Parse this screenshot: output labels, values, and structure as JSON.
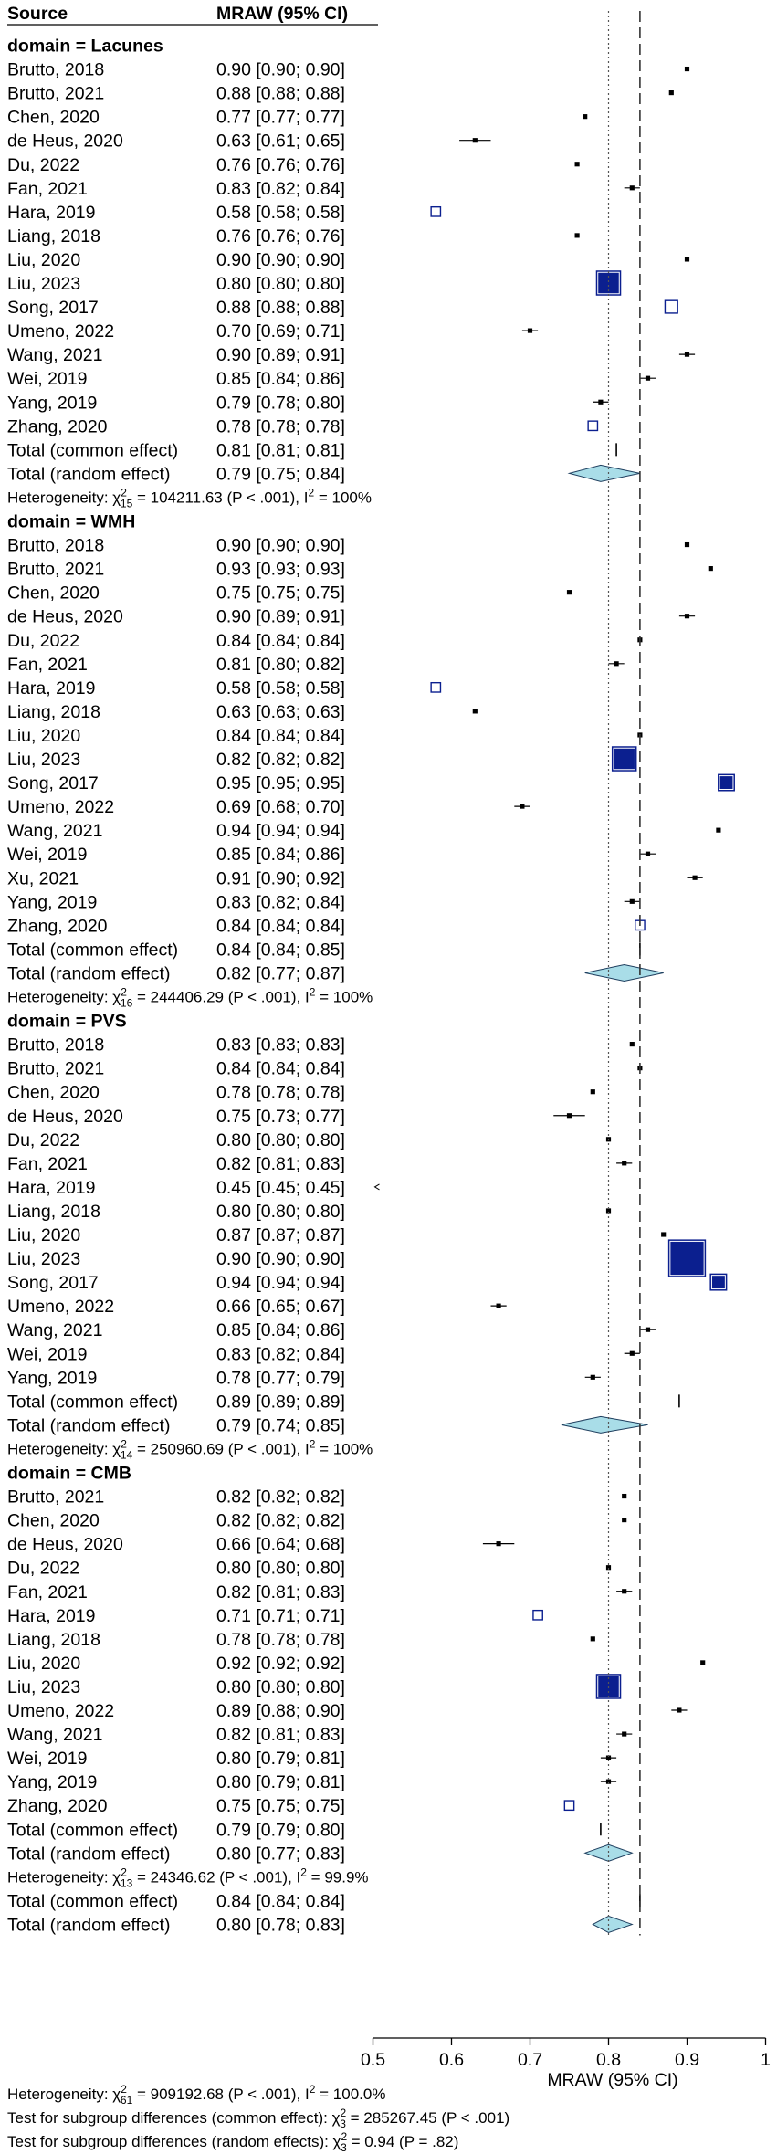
{
  "chart_data": {
    "type": "forest",
    "columns": {
      "source": "Source",
      "estimate": "MRAW (95% CI)"
    },
    "xlabel": "MRAW (95% CI)",
    "xlim": [
      0.5,
      1.0
    ],
    "ticks": [
      "0.5",
      "0.6",
      "0.7",
      "0.8",
      "0.9",
      "1"
    ],
    "overall_common": 0.84,
    "overall_random": 0.8,
    "rows": [
      {
        "type": "header",
        "label": "domain = Lacunes"
      },
      {
        "type": "study",
        "label": "Brutto, 2018",
        "ci": "0.90 [0.90; 0.90]",
        "est": 0.9,
        "lo": 0.9,
        "hi": 0.9,
        "w": 0.006
      },
      {
        "type": "study",
        "label": "Brutto, 2021",
        "ci": "0.88 [0.88; 0.88]",
        "est": 0.88,
        "lo": 0.88,
        "hi": 0.88,
        "w": 0.006
      },
      {
        "type": "study",
        "label": "Chen, 2020",
        "ci": "0.77 [0.77; 0.77]",
        "est": 0.77,
        "lo": 0.77,
        "hi": 0.77,
        "w": 0.006
      },
      {
        "type": "study",
        "label": "de Heus, 2020",
        "ci": "0.63 [0.61; 0.65]",
        "est": 0.63,
        "lo": 0.61,
        "hi": 0.65,
        "w": 0.006
      },
      {
        "type": "study",
        "label": "Du, 2022",
        "ci": "0.76 [0.76; 0.76]",
        "est": 0.76,
        "lo": 0.76,
        "hi": 0.76,
        "w": 0.006
      },
      {
        "type": "study",
        "label": "Fan, 2021",
        "ci": "0.83 [0.82; 0.84]",
        "est": 0.83,
        "lo": 0.82,
        "hi": 0.84,
        "w": 0.006
      },
      {
        "type": "study",
        "label": "Hara, 2019",
        "ci": "0.58 [0.58; 0.58]",
        "est": 0.58,
        "lo": 0.58,
        "hi": 0.58,
        "w": 0.012,
        "open": true
      },
      {
        "type": "study",
        "label": "Liang, 2018",
        "ci": "0.76 [0.76; 0.76]",
        "est": 0.76,
        "lo": 0.76,
        "hi": 0.76,
        "w": 0.006
      },
      {
        "type": "study",
        "label": "Liu, 2020",
        "ci": "0.90 [0.90; 0.90]",
        "est": 0.9,
        "lo": 0.9,
        "hi": 0.9,
        "w": 0.006
      },
      {
        "type": "study",
        "label": "Liu, 2023",
        "ci": "0.80 [0.80; 0.80]",
        "est": 0.8,
        "lo": 0.8,
        "hi": 0.8,
        "w": 0.032
      },
      {
        "type": "study",
        "label": "Song, 2017",
        "ci": "0.88 [0.88; 0.88]",
        "est": 0.88,
        "lo": 0.88,
        "hi": 0.88,
        "w": 0.016,
        "open": true
      },
      {
        "type": "study",
        "label": "Umeno, 2022",
        "ci": "0.70 [0.69; 0.71]",
        "est": 0.7,
        "lo": 0.69,
        "hi": 0.71,
        "w": 0.006
      },
      {
        "type": "study",
        "label": "Wang, 2021",
        "ci": "0.90 [0.89; 0.91]",
        "est": 0.9,
        "lo": 0.89,
        "hi": 0.91,
        "w": 0.006
      },
      {
        "type": "study",
        "label": "Wei, 2019",
        "ci": "0.85 [0.84; 0.86]",
        "est": 0.85,
        "lo": 0.84,
        "hi": 0.86,
        "w": 0.006
      },
      {
        "type": "study",
        "label": "Yang, 2019",
        "ci": "0.79 [0.78; 0.80]",
        "est": 0.79,
        "lo": 0.78,
        "hi": 0.8,
        "w": 0.006
      },
      {
        "type": "study",
        "label": "Zhang, 2020",
        "ci": "0.78 [0.78; 0.78]",
        "est": 0.78,
        "lo": 0.78,
        "hi": 0.78,
        "w": 0.012,
        "open": true
      },
      {
        "type": "common",
        "label": "Total (common effect)",
        "ci": "0.81 [0.81; 0.81]",
        "est": 0.81,
        "lo": 0.81,
        "hi": 0.81
      },
      {
        "type": "random",
        "label": "Total (random effect)",
        "ci": "0.79 [0.75; 0.84]",
        "est": 0.79,
        "lo": 0.75,
        "hi": 0.84
      },
      {
        "type": "het",
        "pre": "Heterogeneity: χ",
        "sup": "2",
        "sub": "15",
        "post": " = 104211.63 (P < .001), I",
        "isup": "2",
        "tail": " = 100%"
      },
      {
        "type": "header",
        "label": "domain = WMH"
      },
      {
        "type": "study",
        "label": "Brutto, 2018",
        "ci": "0.90 [0.90; 0.90]",
        "est": 0.9,
        "lo": 0.9,
        "hi": 0.9,
        "w": 0.006
      },
      {
        "type": "study",
        "label": "Brutto, 2021",
        "ci": "0.93 [0.93; 0.93]",
        "est": 0.93,
        "lo": 0.93,
        "hi": 0.93,
        "w": 0.006
      },
      {
        "type": "study",
        "label": "Chen, 2020",
        "ci": "0.75 [0.75; 0.75]",
        "est": 0.75,
        "lo": 0.75,
        "hi": 0.75,
        "w": 0.006
      },
      {
        "type": "study",
        "label": "de Heus, 2020",
        "ci": "0.90 [0.89; 0.91]",
        "est": 0.9,
        "lo": 0.89,
        "hi": 0.91,
        "w": 0.006
      },
      {
        "type": "study",
        "label": "Du, 2022",
        "ci": "0.84 [0.84; 0.84]",
        "est": 0.84,
        "lo": 0.84,
        "hi": 0.84,
        "w": 0.006
      },
      {
        "type": "study",
        "label": "Fan, 2021",
        "ci": "0.81 [0.80; 0.82]",
        "est": 0.81,
        "lo": 0.8,
        "hi": 0.82,
        "w": 0.006
      },
      {
        "type": "study",
        "label": "Hara, 2019",
        "ci": "0.58 [0.58; 0.58]",
        "est": 0.58,
        "lo": 0.58,
        "hi": 0.58,
        "w": 0.012,
        "open": true
      },
      {
        "type": "study",
        "label": "Liang, 2018",
        "ci": "0.63 [0.63; 0.63]",
        "est": 0.63,
        "lo": 0.63,
        "hi": 0.63,
        "w": 0.006
      },
      {
        "type": "study",
        "label": "Liu, 2020",
        "ci": "0.84 [0.84; 0.84]",
        "est": 0.84,
        "lo": 0.84,
        "hi": 0.84,
        "w": 0.006
      },
      {
        "type": "study",
        "label": "Liu, 2023",
        "ci": "0.82 [0.82; 0.82]",
        "est": 0.82,
        "lo": 0.82,
        "hi": 0.82,
        "w": 0.032
      },
      {
        "type": "study",
        "label": "Song, 2017",
        "ci": "0.95 [0.95; 0.95]",
        "est": 0.95,
        "lo": 0.95,
        "hi": 0.95,
        "w": 0.022
      },
      {
        "type": "study",
        "label": "Umeno, 2022",
        "ci": "0.69 [0.68; 0.70]",
        "est": 0.69,
        "lo": 0.68,
        "hi": 0.7,
        "w": 0.006
      },
      {
        "type": "study",
        "label": "Wang, 2021",
        "ci": "0.94 [0.94; 0.94]",
        "est": 0.94,
        "lo": 0.94,
        "hi": 0.94,
        "w": 0.006
      },
      {
        "type": "study",
        "label": "Wei, 2019",
        "ci": "0.85 [0.84; 0.86]",
        "est": 0.85,
        "lo": 0.84,
        "hi": 0.86,
        "w": 0.006
      },
      {
        "type": "study",
        "label": "Xu, 2021",
        "ci": "0.91 [0.90; 0.92]",
        "est": 0.91,
        "lo": 0.9,
        "hi": 0.92,
        "w": 0.006
      },
      {
        "type": "study",
        "label": "Yang, 2019",
        "ci": "0.83 [0.82; 0.84]",
        "est": 0.83,
        "lo": 0.82,
        "hi": 0.84,
        "w": 0.006
      },
      {
        "type": "study",
        "label": "Zhang, 2020",
        "ci": "0.84 [0.84; 0.84]",
        "est": 0.84,
        "lo": 0.84,
        "hi": 0.84,
        "w": 0.012,
        "open": true
      },
      {
        "type": "common",
        "label": "Total (common effect)",
        "ci": "0.84 [0.84; 0.85]",
        "est": 0.84,
        "lo": 0.84,
        "hi": 0.85
      },
      {
        "type": "random",
        "label": "Total (random effect)",
        "ci": "0.82 [0.77; 0.87]",
        "est": 0.82,
        "lo": 0.77,
        "hi": 0.87
      },
      {
        "type": "het",
        "pre": "Heterogeneity: χ",
        "sup": "2",
        "sub": "16",
        "post": " = 244406.29 (P < .001), I",
        "isup": "2",
        "tail": " = 100%"
      },
      {
        "type": "header",
        "label": "domain = PVS"
      },
      {
        "type": "study",
        "label": "Brutto, 2018",
        "ci": "0.83 [0.83; 0.83]",
        "est": 0.83,
        "lo": 0.83,
        "hi": 0.83,
        "w": 0.006
      },
      {
        "type": "study",
        "label": "Brutto, 2021",
        "ci": "0.84 [0.84; 0.84]",
        "est": 0.84,
        "lo": 0.84,
        "hi": 0.84,
        "w": 0.006
      },
      {
        "type": "study",
        "label": "Chen, 2020",
        "ci": "0.78 [0.78; 0.78]",
        "est": 0.78,
        "lo": 0.78,
        "hi": 0.78,
        "w": 0.006
      },
      {
        "type": "study",
        "label": "de Heus, 2020",
        "ci": "0.75 [0.73; 0.77]",
        "est": 0.75,
        "lo": 0.73,
        "hi": 0.77,
        "w": 0.006
      },
      {
        "type": "study",
        "label": "Du, 2022",
        "ci": "0.80 [0.80; 0.80]",
        "est": 0.8,
        "lo": 0.8,
        "hi": 0.8,
        "w": 0.006
      },
      {
        "type": "study",
        "label": "Fan, 2021",
        "ci": "0.82 [0.81; 0.83]",
        "est": 0.82,
        "lo": 0.81,
        "hi": 0.83,
        "w": 0.006
      },
      {
        "type": "study",
        "label": "Hara, 2019",
        "ci": "0.45 [0.45; 0.45]",
        "est": 0.45,
        "lo": 0.45,
        "hi": 0.45,
        "w": 0,
        "arrow": true
      },
      {
        "type": "study",
        "label": "Liang, 2018",
        "ci": "0.80 [0.80; 0.80]",
        "est": 0.8,
        "lo": 0.8,
        "hi": 0.8,
        "w": 0.006
      },
      {
        "type": "study",
        "label": "Liu, 2020",
        "ci": "0.87 [0.87; 0.87]",
        "est": 0.87,
        "lo": 0.87,
        "hi": 0.87,
        "w": 0.006
      },
      {
        "type": "study",
        "label": "Liu, 2023",
        "ci": "0.90 [0.90; 0.90]",
        "est": 0.9,
        "lo": 0.9,
        "hi": 0.9,
        "w": 0.048
      },
      {
        "type": "study",
        "label": "Song, 2017",
        "ci": "0.94 [0.94; 0.94]",
        "est": 0.94,
        "lo": 0.94,
        "hi": 0.94,
        "w": 0.022
      },
      {
        "type": "study",
        "label": "Umeno, 2022",
        "ci": "0.66 [0.65; 0.67]",
        "est": 0.66,
        "lo": 0.65,
        "hi": 0.67,
        "w": 0.006
      },
      {
        "type": "study",
        "label": "Wang, 2021",
        "ci": "0.85 [0.84; 0.86]",
        "est": 0.85,
        "lo": 0.84,
        "hi": 0.86,
        "w": 0.006
      },
      {
        "type": "study",
        "label": "Wei, 2019",
        "ci": "0.83 [0.82; 0.84]",
        "est": 0.83,
        "lo": 0.82,
        "hi": 0.84,
        "w": 0.006
      },
      {
        "type": "study",
        "label": "Yang, 2019",
        "ci": "0.78 [0.77; 0.79]",
        "est": 0.78,
        "lo": 0.77,
        "hi": 0.79,
        "w": 0.006
      },
      {
        "type": "common",
        "label": "Total (common effect)",
        "ci": "0.89 [0.89; 0.89]",
        "est": 0.89,
        "lo": 0.89,
        "hi": 0.89
      },
      {
        "type": "random",
        "label": "Total (random effect)",
        "ci": "0.79 [0.74; 0.85]",
        "est": 0.79,
        "lo": 0.74,
        "hi": 0.85
      },
      {
        "type": "het",
        "pre": "Heterogeneity: χ",
        "sup": "2",
        "sub": "14",
        "post": " = 250960.69 (P < .001), I",
        "isup": "2",
        "tail": " = 100%"
      },
      {
        "type": "header",
        "label": "domain = CMB"
      },
      {
        "type": "study",
        "label": "Brutto, 2021",
        "ci": "0.82 [0.82; 0.82]",
        "est": 0.82,
        "lo": 0.82,
        "hi": 0.82,
        "w": 0.006
      },
      {
        "type": "study",
        "label": "Chen, 2020",
        "ci": "0.82 [0.82; 0.82]",
        "est": 0.82,
        "lo": 0.82,
        "hi": 0.82,
        "w": 0.006
      },
      {
        "type": "study",
        "label": "de Heus, 2020",
        "ci": "0.66 [0.64; 0.68]",
        "est": 0.66,
        "lo": 0.64,
        "hi": 0.68,
        "w": 0.006
      },
      {
        "type": "study",
        "label": "Du, 2022",
        "ci": "0.80 [0.80; 0.80]",
        "est": 0.8,
        "lo": 0.8,
        "hi": 0.8,
        "w": 0.006
      },
      {
        "type": "study",
        "label": "Fan, 2021",
        "ci": "0.82 [0.81; 0.83]",
        "est": 0.82,
        "lo": 0.81,
        "hi": 0.83,
        "w": 0.006
      },
      {
        "type": "study",
        "label": "Hara, 2019",
        "ci": "0.71 [0.71; 0.71]",
        "est": 0.71,
        "lo": 0.71,
        "hi": 0.71,
        "w": 0.012,
        "open": true
      },
      {
        "type": "study",
        "label": "Liang, 2018",
        "ci": "0.78 [0.78; 0.78]",
        "est": 0.78,
        "lo": 0.78,
        "hi": 0.78,
        "w": 0.006
      },
      {
        "type": "study",
        "label": "Liu, 2020",
        "ci": "0.92 [0.92; 0.92]",
        "est": 0.92,
        "lo": 0.92,
        "hi": 0.92,
        "w": 0.006
      },
      {
        "type": "study",
        "label": "Liu, 2023",
        "ci": "0.80 [0.80; 0.80]",
        "est": 0.8,
        "lo": 0.8,
        "hi": 0.8,
        "w": 0.032
      },
      {
        "type": "study",
        "label": "Umeno, 2022",
        "ci": "0.89 [0.88; 0.90]",
        "est": 0.89,
        "lo": 0.88,
        "hi": 0.9,
        "w": 0.006
      },
      {
        "type": "study",
        "label": "Wang, 2021",
        "ci": "0.82 [0.81; 0.83]",
        "est": 0.82,
        "lo": 0.81,
        "hi": 0.83,
        "w": 0.006
      },
      {
        "type": "study",
        "label": "Wei, 2019",
        "ci": "0.80 [0.79; 0.81]",
        "est": 0.8,
        "lo": 0.79,
        "hi": 0.81,
        "w": 0.006
      },
      {
        "type": "study",
        "label": "Yang, 2019",
        "ci": "0.80 [0.79; 0.81]",
        "est": 0.8,
        "lo": 0.79,
        "hi": 0.81,
        "w": 0.006
      },
      {
        "type": "study",
        "label": "Zhang, 2020",
        "ci": "0.75 [0.75; 0.75]",
        "est": 0.75,
        "lo": 0.75,
        "hi": 0.75,
        "w": 0.012,
        "open": true
      },
      {
        "type": "common",
        "label": "Total (common effect)",
        "ci": "0.79 [0.79; 0.80]",
        "est": 0.79,
        "lo": 0.79,
        "hi": 0.8
      },
      {
        "type": "random",
        "label": "Total (random effect)",
        "ci": "0.80 [0.77; 0.83]",
        "est": 0.8,
        "lo": 0.77,
        "hi": 0.83
      },
      {
        "type": "het",
        "pre": "Heterogeneity: χ",
        "sup": "2",
        "sub": "13",
        "post": " = 24346.62 (P < .001), I",
        "isup": "2",
        "tail": " = 99.9%"
      },
      {
        "type": "common",
        "label": "Total (common effect)",
        "ci": "0.84 [0.84; 0.84]",
        "est": 0.84,
        "lo": 0.84,
        "hi": 0.84
      },
      {
        "type": "random",
        "label": "Total (random effect)",
        "ci": "0.80 [0.78; 0.83]",
        "est": 0.8,
        "lo": 0.78,
        "hi": 0.83
      }
    ],
    "footer": [
      {
        "pre": "Heterogeneity: χ",
        "sup": "2",
        "sub": "61",
        "post": " = 909192.68 (P < .001), I",
        "isup": "2",
        "tail": " = 100.0%"
      },
      {
        "pre": "Test for subgroup differences (common effect): χ",
        "sup": "2",
        "sub": "3",
        "post": " = 285267.45 (P < .001)"
      },
      {
        "pre": "Test for subgroup differences (random effects): χ",
        "sup": "2",
        "sub": "3",
        "post": " = 0.94 (P = .82)"
      }
    ],
    "colors": {
      "box": "#0b1f8f",
      "diamond": "#a9dde8",
      "diamond_stroke": "#1f3f5f"
    }
  }
}
